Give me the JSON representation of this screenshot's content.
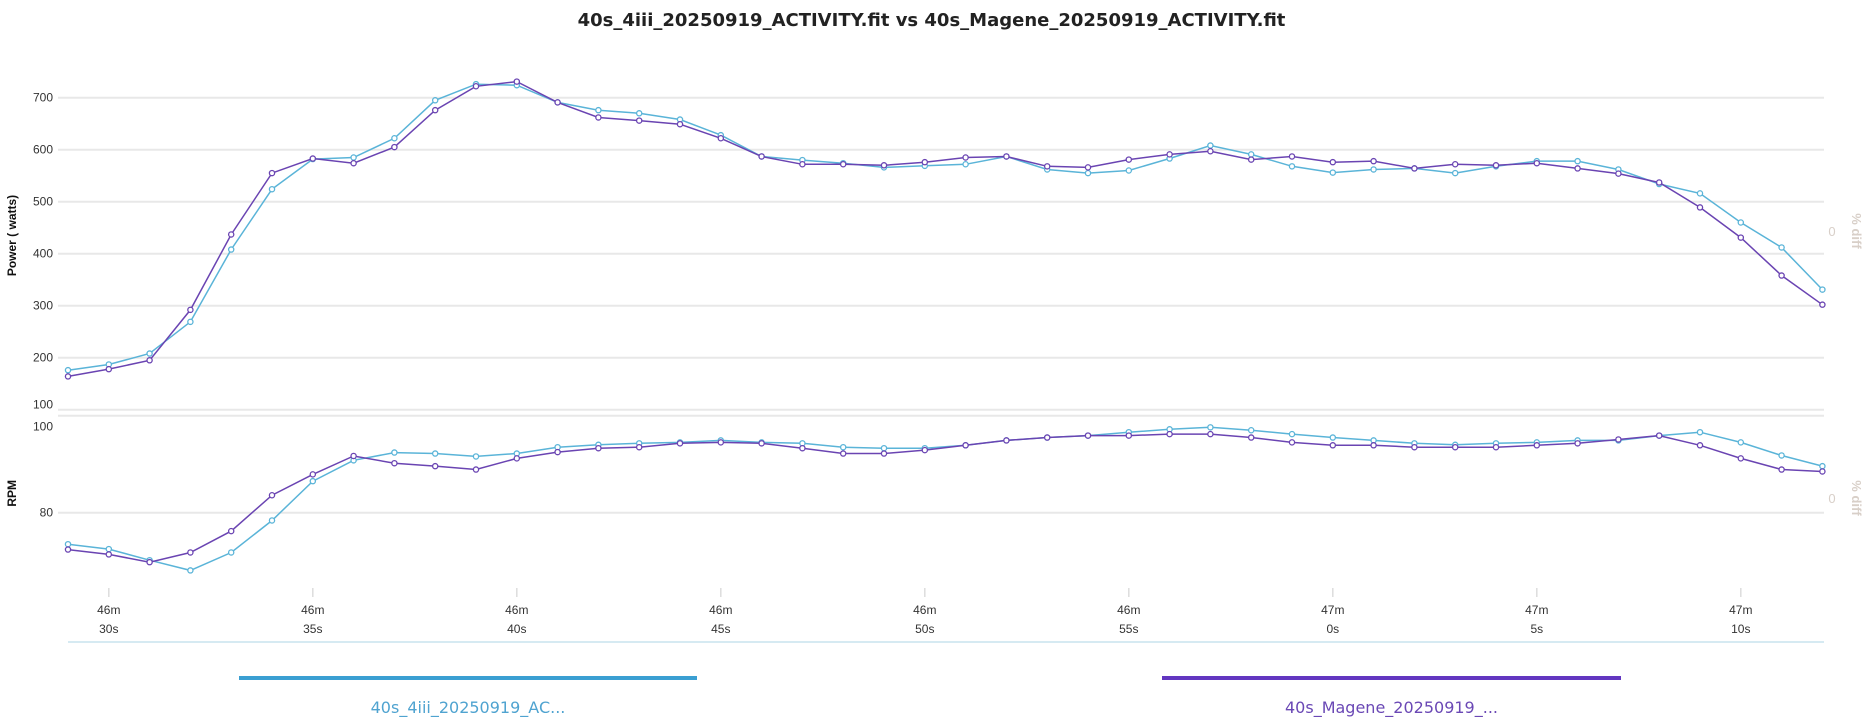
{
  "title": "40s_4iii_20250919_ACTIVITY.fit vs 40s_Magene_20250919_ACTIVITY.fit",
  "chart_data": [
    {
      "type": "line",
      "ylabel": "Power ( watts)",
      "y2label": "% diff",
      "y2ticks": [
        "0"
      ],
      "yticks": [
        100,
        200,
        300,
        400,
        500,
        600,
        700
      ],
      "ylim": [
        100,
        770
      ],
      "grid": true,
      "x": [
        "46:29",
        "46:30",
        "46:31",
        "46:32",
        "46:33",
        "46:34",
        "46:35",
        "46:36",
        "46:37",
        "46:38",
        "46:39",
        "46:40",
        "46:41",
        "46:42",
        "46:43",
        "46:44",
        "46:45",
        "46:46",
        "46:47",
        "46:48",
        "46:49",
        "46:50",
        "46:51",
        "46:52",
        "46:53",
        "46:54",
        "46:55",
        "46:56",
        "46:57",
        "46:58",
        "46:59",
        "47:00",
        "47:01",
        "47:02",
        "47:03",
        "47:04",
        "47:05",
        "47:06",
        "47:07",
        "47:08",
        "47:09",
        "47:10",
        "47:11",
        "47:12"
      ],
      "series": [
        {
          "name": "40s_4iii_20250919_AC...",
          "color": "#5ab4d8",
          "values": [
            176,
            187,
            208,
            269,
            408,
            524,
            582,
            585,
            622,
            695,
            726,
            724,
            691,
            676,
            670,
            658,
            628,
            587,
            580,
            574,
            566,
            569,
            572,
            587,
            562,
            555,
            560,
            583,
            608,
            591,
            568,
            556,
            562,
            564,
            555,
            568,
            578,
            578,
            562,
            534,
            516,
            460,
            412,
            331
          ]
        },
        {
          "name": "40s_Magene_20250919_...",
          "color": "#6a44b2",
          "values": [
            164,
            178,
            195,
            292,
            437,
            555,
            583,
            574,
            605,
            676,
            722,
            731,
            691,
            662,
            656,
            649,
            622,
            587,
            572,
            572,
            570,
            576,
            585,
            587,
            568,
            566,
            581,
            591,
            597,
            581,
            587,
            576,
            578,
            564,
            572,
            570,
            574,
            564,
            554,
            537,
            489,
            431,
            358,
            302
          ]
        }
      ]
    },
    {
      "type": "line",
      "ylabel": "RPM",
      "y2label": "% diff",
      "y2ticks": [
        "0"
      ],
      "yticks": [
        80,
        100
      ],
      "ylim": [
        63.5,
        100
      ],
      "grid": true,
      "series": [
        {
          "name": "40s_4iii_20250919_AC...",
          "color": "#5ab4d8",
          "values": [
            73.5,
            72.5,
            70.2,
            68.1,
            71.8,
            78.4,
            86.5,
            90.8,
            92.4,
            92.2,
            91.6,
            92.2,
            93.5,
            94.0,
            94.3,
            94.5,
            94.9,
            94.5,
            94.3,
            93.5,
            93.3,
            93.3,
            93.9,
            94.9,
            95.5,
            95.9,
            96.6,
            97.2,
            97.6,
            97.0,
            96.2,
            95.5,
            94.9,
            94.3,
            94.0,
            94.3,
            94.5,
            94.9,
            94.9,
            95.9,
            96.6,
            94.5,
            91.8,
            89.6
          ]
        },
        {
          "name": "40s_Magene_20250919_...",
          "color": "#6a44b2",
          "values": [
            72.4,
            71.4,
            69.8,
            71.8,
            76.2,
            83.6,
            87.9,
            91.7,
            90.2,
            89.6,
            88.9,
            91.2,
            92.5,
            93.3,
            93.5,
            94.3,
            94.5,
            94.3,
            93.3,
            92.2,
            92.2,
            92.9,
            93.9,
            94.9,
            95.5,
            95.9,
            95.9,
            96.2,
            96.2,
            95.5,
            94.5,
            93.9,
            93.9,
            93.5,
            93.5,
            93.5,
            93.9,
            94.3,
            95.1,
            95.9,
            93.9,
            91.2,
            88.9,
            88.5
          ]
        }
      ]
    }
  ],
  "xticks": [
    {
      "m": "46m",
      "s": "30s",
      "at": "46:30"
    },
    {
      "m": "46m",
      "s": "35s",
      "at": "46:35"
    },
    {
      "m": "46m",
      "s": "40s",
      "at": "46:40"
    },
    {
      "m": "46m",
      "s": "45s",
      "at": "46:45"
    },
    {
      "m": "46m",
      "s": "50s",
      "at": "46:50"
    },
    {
      "m": "46m",
      "s": "55s",
      "at": "46:55"
    },
    {
      "m": "47m",
      "s": "0s",
      "at": "47:00"
    },
    {
      "m": "47m",
      "s": "5s",
      "at": "47:05"
    },
    {
      "m": "47m",
      "s": "10s",
      "at": "47:10"
    }
  ],
  "legend": [
    {
      "label": "40s_4iii_20250919_AC...",
      "bar_color": "#3a9fd2",
      "text_color": "#4fa3d0"
    },
    {
      "label": "40s_Magene_20250919_...",
      "bar_color": "#6236c0",
      "text_color": "#6a48b5"
    }
  ]
}
